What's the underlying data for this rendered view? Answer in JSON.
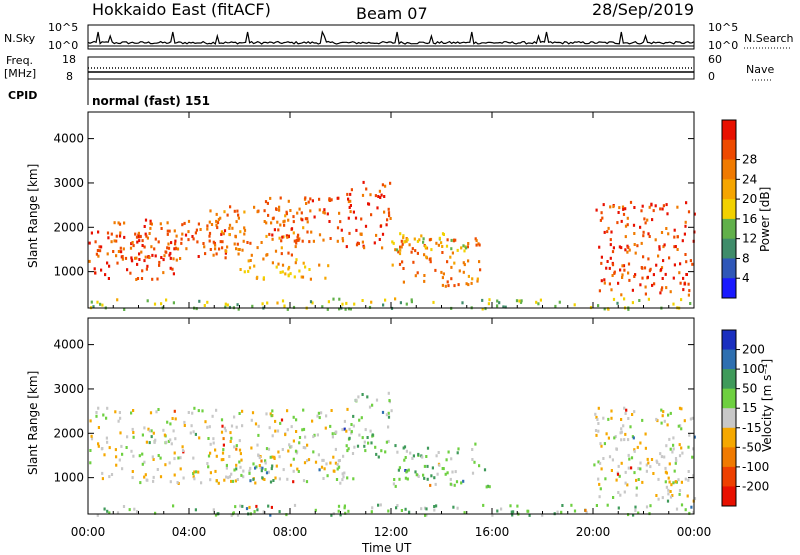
{
  "header": {
    "station": "Hokkaido East (fitACF)",
    "beam": "Beam 07",
    "date": "28/Sep/2019"
  },
  "strip_labels": {
    "nsky": "N.Sky",
    "nsearch": "N.Search",
    "freq_line1": "Freq.",
    "freq_line2": "[MHz]",
    "cpid": "CPID",
    "nave": "Nave",
    "nsky_ticks": [
      "10^5",
      "10^0"
    ],
    "nsearch_ticks": [
      "10^5",
      "10^0"
    ],
    "freq_ticks": [
      "18",
      "8"
    ],
    "nave_ticks": [
      "60",
      "0"
    ],
    "cpid_text": "normal (fast) 151"
  },
  "chart_data": [
    {
      "type": "heatmap",
      "name": "power",
      "ylabel": "Slant Range [km]",
      "xlabel": "",
      "x_ticks": [
        "00:00",
        "04:00",
        "08:00",
        "12:00",
        "16:00",
        "20:00",
        "00:00"
      ],
      "y_ticks": [
        1000,
        2000,
        3000,
        4000
      ],
      "ylim": [
        180,
        4600
      ],
      "xlim_hours": [
        0,
        24
      ],
      "colorbar": {
        "label": "Power [dB]",
        "ticks": [
          4,
          8,
          12,
          16,
          20,
          24,
          28
        ],
        "colors": [
          "#1a1aff",
          "#2f57b8",
          "#3f8c6a",
          "#61b04a",
          "#f2d100",
          "#f5a500",
          "#f07a00",
          "#ee4a00",
          "#e81000"
        ]
      },
      "regions": [
        {
          "t0": 0.0,
          "t1": 3.5,
          "r0": 850,
          "r1": 1950,
          "level": 26
        },
        {
          "t0": 1.0,
          "t1": 6.0,
          "r0": 1300,
          "r1": 2200,
          "level": 24
        },
        {
          "t0": 4.5,
          "t1": 8.5,
          "r0": 1400,
          "r1": 2500,
          "level": 22
        },
        {
          "t0": 7.0,
          "t1": 10.5,
          "r0": 1700,
          "r1": 2700,
          "level": 24
        },
        {
          "t0": 6.0,
          "t1": 9.5,
          "r0": 850,
          "r1": 1350,
          "level": 18
        },
        {
          "t0": 10.2,
          "t1": 12.0,
          "r0": 1500,
          "r1": 3100,
          "level": 25
        },
        {
          "t0": 12.0,
          "t1": 15.5,
          "r0": 700,
          "r1": 1800,
          "level": 22
        },
        {
          "t0": 12.0,
          "t1": 15.0,
          "r0": 1500,
          "r1": 1900,
          "level": 14
        },
        {
          "t0": 20.0,
          "t1": 24.0,
          "r0": 500,
          "r1": 2600,
          "level": 26
        },
        {
          "t0": 0.0,
          "t1": 24.0,
          "r0": 180,
          "r1": 420,
          "level": 12
        }
      ]
    },
    {
      "type": "heatmap",
      "name": "velocity",
      "ylabel": "Slant Range [km]",
      "xlabel": "Time UT",
      "x_ticks": [
        "00:00",
        "04:00",
        "08:00",
        "12:00",
        "16:00",
        "20:00",
        "00:00"
      ],
      "y_ticks": [
        1000,
        2000,
        3000,
        4000
      ],
      "ylim": [
        180,
        4600
      ],
      "xlim_hours": [
        0,
        24
      ],
      "colorbar": {
        "label": "Velocity [m s⁻¹]",
        "ticks": [
          "200",
          "100",
          "50",
          "15",
          "-15",
          "-50",
          "-100",
          "-200"
        ],
        "colors": [
          "#1a2fbf",
          "#2e6fb0",
          "#3f9a5a",
          "#6ed040",
          "#c8c8c8",
          "#f5a800",
          "#f07a00",
          "#ee4000",
          "#e81000"
        ]
      },
      "regions": [
        {
          "t0": 0.0,
          "t1": 10.5,
          "r0": 900,
          "r1": 2600,
          "level": 0
        },
        {
          "t0": 6.0,
          "t1": 7.5,
          "r0": 900,
          "r1": 1300,
          "level": 50
        },
        {
          "t0": 10.3,
          "t1": 12.0,
          "r0": 1500,
          "r1": 3000,
          "level": 30
        },
        {
          "t0": 12.0,
          "t1": 16.0,
          "r0": 800,
          "r1": 1800,
          "level": 30
        },
        {
          "t0": 20.0,
          "t1": 24.0,
          "r0": 500,
          "r1": 2600,
          "level": 0
        },
        {
          "t0": 0.0,
          "t1": 24.0,
          "r0": 180,
          "r1": 420,
          "level": 20
        }
      ]
    }
  ]
}
